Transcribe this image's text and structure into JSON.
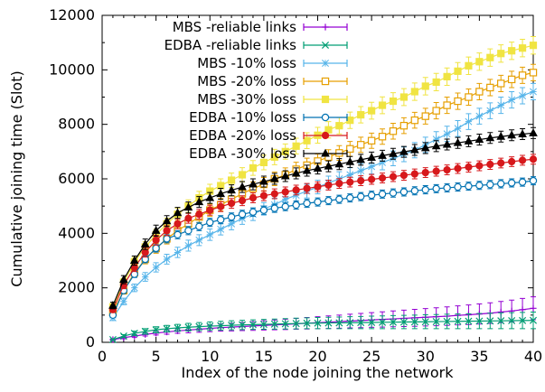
{
  "chart_data": {
    "type": "line",
    "title": "",
    "xlabel": "Index of the node joining the network",
    "ylabel": "Cumulative joining time (Slot)",
    "xlim": [
      0,
      40
    ],
    "ylim": [
      0,
      12000
    ],
    "xticks": [
      "0",
      "5",
      "10",
      "15",
      "20",
      "25",
      "30",
      "35",
      "40"
    ],
    "yticks": [
      "0",
      "2000",
      "4000",
      "6000",
      "8000",
      "10000",
      "12000"
    ],
    "grid": false,
    "legend_position": "top-left",
    "error_bars": true,
    "series": [
      {
        "name": "MBS -reliable links",
        "color": "#9400d3",
        "marker": "plus",
        "x": [
          1,
          2,
          3,
          4,
          5,
          6,
          7,
          8,
          9,
          10,
          11,
          12,
          13,
          14,
          15,
          16,
          17,
          18,
          19,
          20,
          21,
          22,
          23,
          24,
          25,
          26,
          27,
          28,
          29,
          30,
          31,
          32,
          33,
          34,
          35,
          36,
          37,
          38,
          39,
          40
        ],
        "y": [
          100,
          170,
          230,
          290,
          340,
          380,
          420,
          450,
          480,
          510,
          540,
          560,
          580,
          600,
          620,
          640,
          660,
          680,
          700,
          720,
          740,
          760,
          780,
          800,
          820,
          840,
          860,
          880,
          900,
          920,
          940,
          960,
          990,
          1010,
          1040,
          1070,
          1110,
          1150,
          1200,
          1250
        ],
        "err": [
          30,
          40,
          50,
          60,
          70,
          80,
          90,
          100,
          110,
          120,
          130,
          140,
          150,
          160,
          170,
          180,
          190,
          200,
          210,
          220,
          230,
          240,
          250,
          260,
          270,
          280,
          290,
          300,
          310,
          320,
          330,
          340,
          350,
          360,
          370,
          380,
          390,
          400,
          410,
          420
        ]
      },
      {
        "name": "EDBA -reliable links",
        "color": "#009e73",
        "marker": "x",
        "x": [
          1,
          2,
          3,
          4,
          5,
          6,
          7,
          8,
          9,
          10,
          11,
          12,
          13,
          14,
          15,
          16,
          17,
          18,
          19,
          20,
          21,
          22,
          23,
          24,
          25,
          26,
          27,
          28,
          29,
          30,
          31,
          32,
          33,
          34,
          35,
          36,
          37,
          38,
          39,
          40
        ],
        "y": [
          100,
          230,
          330,
          400,
          460,
          500,
          530,
          555,
          575,
          595,
          610,
          625,
          640,
          650,
          660,
          670,
          680,
          690,
          700,
          705,
          710,
          715,
          720,
          725,
          730,
          735,
          740,
          745,
          750,
          755,
          760,
          765,
          770,
          775,
          780,
          785,
          790,
          795,
          800,
          805
        ],
        "err": [
          30,
          50,
          80,
          100,
          110,
          120,
          130,
          140,
          150,
          155,
          160,
          165,
          170,
          175,
          180,
          185,
          190,
          195,
          200,
          205,
          210,
          215,
          220,
          225,
          230,
          235,
          240,
          245,
          250,
          255,
          260,
          265,
          270,
          275,
          280,
          285,
          290,
          295,
          300,
          305
        ]
      },
      {
        "name": "MBS -10% loss",
        "color": "#56b4e9",
        "marker": "star",
        "x": [
          1,
          2,
          3,
          4,
          5,
          6,
          7,
          8,
          9,
          10,
          11,
          12,
          13,
          14,
          15,
          16,
          17,
          18,
          19,
          20,
          21,
          22,
          23,
          24,
          25,
          26,
          27,
          28,
          29,
          30,
          31,
          32,
          33,
          34,
          35,
          36,
          37,
          38,
          39,
          40
        ],
        "y": [
          900,
          1500,
          2000,
          2400,
          2750,
          3050,
          3300,
          3550,
          3750,
          3950,
          4150,
          4350,
          4550,
          4700,
          4900,
          5050,
          5250,
          5400,
          5550,
          5700,
          5850,
          6000,
          6150,
          6300,
          6450,
          6600,
          6750,
          6900,
          7050,
          7250,
          7450,
          7650,
          7850,
          8100,
          8300,
          8500,
          8700,
          8900,
          9050,
          9200
        ],
        "err": [
          100,
          120,
          140,
          160,
          170,
          180,
          190,
          200,
          200,
          210,
          210,
          220,
          220,
          230,
          230,
          240,
          240,
          240,
          250,
          250,
          250,
          260,
          260,
          260,
          270,
          270,
          270,
          270,
          280,
          280,
          280,
          280,
          290,
          290,
          290,
          290,
          300,
          300,
          300,
          300
        ]
      },
      {
        "name": "MBS -20% loss",
        "color": "#e69f00",
        "marker": "open-square",
        "x": [
          1,
          2,
          3,
          4,
          5,
          6,
          7,
          8,
          9,
          10,
          11,
          12,
          13,
          14,
          15,
          16,
          17,
          18,
          19,
          20,
          21,
          22,
          23,
          24,
          25,
          26,
          27,
          28,
          29,
          30,
          31,
          32,
          33,
          34,
          35,
          36,
          37,
          38,
          39,
          40
        ],
        "y": [
          1100,
          1900,
          2550,
          3050,
          3450,
          3800,
          4100,
          4350,
          4600,
          4850,
          5050,
          5250,
          5450,
          5650,
          5800,
          6000,
          6150,
          6350,
          6500,
          6650,
          6800,
          6950,
          7100,
          7250,
          7400,
          7550,
          7750,
          7950,
          8150,
          8300,
          8500,
          8700,
          8850,
          9000,
          9200,
          9350,
          9500,
          9650,
          9800,
          9900
        ],
        "err": [
          100,
          130,
          150,
          170,
          180,
          190,
          200,
          210,
          220,
          220,
          230,
          230,
          240,
          240,
          250,
          250,
          250,
          260,
          260,
          260,
          270,
          270,
          270,
          280,
          280,
          280,
          290,
          290,
          290,
          290,
          300,
          300,
          300,
          300,
          300,
          300,
          300,
          300,
          300,
          300
        ]
      },
      {
        "name": "MBS -30% loss",
        "color": "#f0e442",
        "marker": "filled-square",
        "x": [
          1,
          2,
          3,
          4,
          5,
          6,
          7,
          8,
          9,
          10,
          11,
          12,
          13,
          14,
          15,
          16,
          17,
          18,
          19,
          20,
          21,
          22,
          23,
          24,
          25,
          26,
          27,
          28,
          29,
          30,
          31,
          32,
          33,
          34,
          35,
          36,
          37,
          38,
          39,
          40
        ],
        "y": [
          1300,
          2200,
          2950,
          3500,
          3950,
          4350,
          4700,
          5000,
          5300,
          5550,
          5750,
          5950,
          6150,
          6400,
          6600,
          6800,
          7000,
          7200,
          7400,
          7600,
          7800,
          7950,
          8150,
          8350,
          8500,
          8700,
          8850,
          9000,
          9200,
          9400,
          9550,
          9750,
          9950,
          10150,
          10300,
          10450,
          10600,
          10700,
          10800,
          10900
        ],
        "err": [
          120,
          150,
          170,
          190,
          200,
          210,
          220,
          230,
          240,
          250,
          250,
          260,
          260,
          270,
          270,
          280,
          280,
          290,
          290,
          290,
          300,
          300,
          300,
          300,
          310,
          310,
          310,
          310,
          320,
          320,
          320,
          320,
          320,
          320,
          320,
          320,
          320,
          320,
          320,
          320
        ]
      },
      {
        "name": "EDBA -10% loss",
        "color": "#0072b2",
        "marker": "open-circle",
        "x": [
          1,
          2,
          3,
          4,
          5,
          6,
          7,
          8,
          9,
          10,
          11,
          12,
          13,
          14,
          15,
          16,
          17,
          18,
          19,
          20,
          21,
          22,
          23,
          24,
          25,
          26,
          27,
          28,
          29,
          30,
          31,
          32,
          33,
          34,
          35,
          36,
          37,
          38,
          39,
          40
        ],
        "y": [
          1000,
          1900,
          2500,
          3050,
          3450,
          3800,
          3950,
          4100,
          4250,
          4400,
          4500,
          4600,
          4700,
          4780,
          4850,
          4920,
          4980,
          5040,
          5100,
          5150,
          5200,
          5250,
          5300,
          5350,
          5400,
          5440,
          5480,
          5520,
          5560,
          5600,
          5640,
          5670,
          5700,
          5730,
          5760,
          5790,
          5820,
          5850,
          5880,
          5930
        ],
        "err": [
          80,
          100,
          120,
          130,
          140,
          150,
          150,
          150,
          150,
          150,
          150,
          150,
          150,
          150,
          150,
          150,
          150,
          150,
          150,
          150,
          150,
          150,
          150,
          150,
          150,
          150,
          150,
          150,
          150,
          150,
          150,
          150,
          150,
          150,
          150,
          150,
          150,
          150,
          150,
          150
        ]
      },
      {
        "name": "EDBA -20% loss",
        "color": "#d7191c",
        "marker": "filled-circle",
        "x": [
          1,
          2,
          3,
          4,
          5,
          6,
          7,
          8,
          9,
          10,
          11,
          12,
          13,
          14,
          15,
          16,
          17,
          18,
          19,
          20,
          21,
          22,
          23,
          24,
          25,
          26,
          27,
          28,
          29,
          30,
          31,
          32,
          33,
          34,
          35,
          36,
          37,
          38,
          39,
          40
        ],
        "y": [
          1200,
          2100,
          2750,
          3300,
          3750,
          4100,
          4350,
          4550,
          4700,
          4850,
          4980,
          5100,
          5200,
          5300,
          5380,
          5450,
          5520,
          5590,
          5650,
          5710,
          5770,
          5830,
          5880,
          5930,
          5980,
          6030,
          6080,
          6130,
          6180,
          6230,
          6280,
          6330,
          6380,
          6430,
          6480,
          6530,
          6580,
          6630,
          6680,
          6720
        ],
        "err": [
          100,
          130,
          150,
          170,
          180,
          180,
          180,
          180,
          180,
          180,
          180,
          180,
          180,
          180,
          180,
          180,
          180,
          180,
          180,
          180,
          180,
          180,
          180,
          180,
          180,
          180,
          180,
          180,
          180,
          180,
          180,
          180,
          180,
          180,
          180,
          180,
          180,
          180,
          180,
          180
        ]
      },
      {
        "name": "EDBA -30% loss",
        "color": "#000000",
        "marker": "filled-triangle",
        "x": [
          1,
          2,
          3,
          4,
          5,
          6,
          7,
          8,
          9,
          10,
          11,
          12,
          13,
          14,
          15,
          16,
          17,
          18,
          19,
          20,
          21,
          22,
          23,
          24,
          25,
          26,
          27,
          28,
          29,
          30,
          31,
          32,
          33,
          34,
          35,
          36,
          37,
          38,
          39,
          40
        ],
        "y": [
          1350,
          2300,
          3000,
          3600,
          4100,
          4450,
          4750,
          4950,
          5150,
          5300,
          5450,
          5580,
          5700,
          5800,
          5900,
          6000,
          6100,
          6200,
          6300,
          6380,
          6460,
          6540,
          6620,
          6700,
          6780,
          6850,
          6920,
          6990,
          7060,
          7130,
          7200,
          7260,
          7320,
          7380,
          7440,
          7500,
          7550,
          7600,
          7640,
          7680
        ],
        "err": [
          120,
          150,
          170,
          190,
          200,
          200,
          200,
          200,
          200,
          200,
          200,
          200,
          200,
          200,
          200,
          200,
          200,
          200,
          200,
          200,
          200,
          200,
          200,
          200,
          200,
          200,
          200,
          200,
          200,
          200,
          200,
          200,
          200,
          200,
          200,
          200,
          200,
          200,
          200,
          200
        ]
      }
    ]
  }
}
